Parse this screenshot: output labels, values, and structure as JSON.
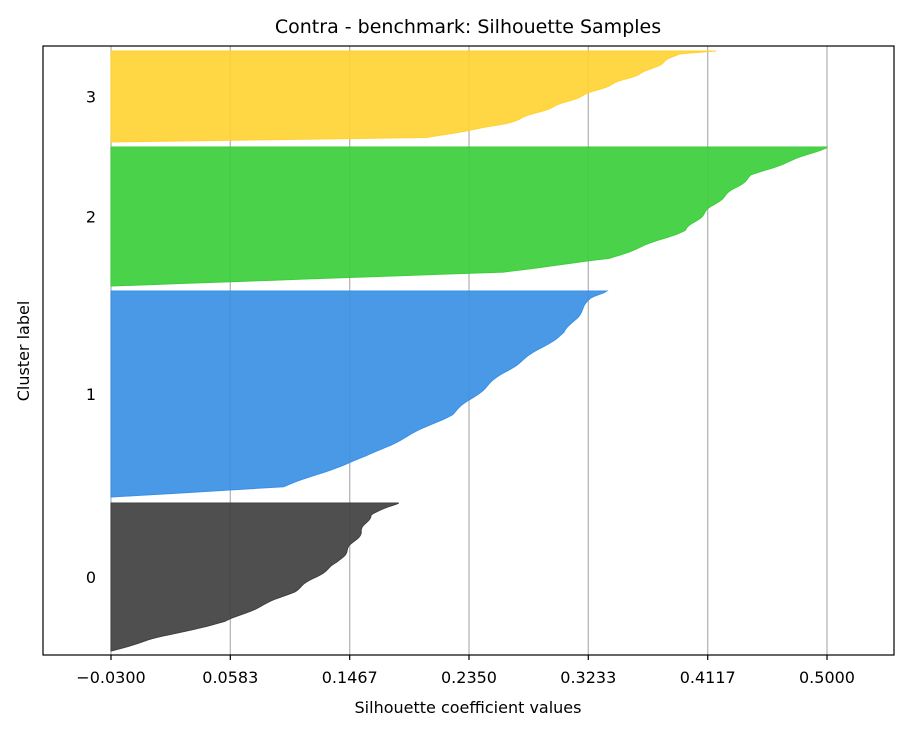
{
  "chart_data": {
    "type": "area",
    "title": "Contra - benchmark: Silhouette Samples",
    "xlabel": "Silhouette coefficient values",
    "ylabel": "Cluster label",
    "x_ticks": [
      "−0.0300",
      "0.0583",
      "0.1467",
      "0.2350",
      "0.3233",
      "0.4117",
      "0.5000"
    ],
    "x_tick_values": [
      -0.03,
      0.0583,
      0.1467,
      0.235,
      0.3233,
      0.4117,
      0.5
    ],
    "xlim": [
      -0.08,
      0.52
    ],
    "grid": "vertical",
    "clusters": [
      {
        "label": "0",
        "color": "#404040",
        "profile": [
          [
            0.0,
            -0.03
          ],
          [
            0.08,
            0.0
          ],
          [
            0.2,
            0.055
          ],
          [
            0.4,
            0.105
          ],
          [
            0.6,
            0.138
          ],
          [
            0.8,
            0.155
          ],
          [
            0.92,
            0.162
          ],
          [
            1.0,
            0.183
          ]
        ]
      },
      {
        "label": "1",
        "color": "#3990e4",
        "profile": [
          [
            0.0,
            -0.03
          ],
          [
            0.05,
            0.098
          ],
          [
            0.2,
            0.16
          ],
          [
            0.4,
            0.222
          ],
          [
            0.6,
            0.26
          ],
          [
            0.8,
            0.306
          ],
          [
            0.97,
            0.326
          ],
          [
            1.0,
            0.337
          ]
        ]
      },
      {
        "label": "2",
        "color": "#3cce3c",
        "profile": [
          [
            0.0,
            -0.03
          ],
          [
            0.1,
            0.26
          ],
          [
            0.2,
            0.34
          ],
          [
            0.4,
            0.395
          ],
          [
            0.6,
            0.418
          ],
          [
            0.8,
            0.445
          ],
          [
            0.96,
            0.49
          ],
          [
            1.0,
            0.5
          ]
        ]
      },
      {
        "label": "3",
        "color": "#ffd233",
        "profile": [
          [
            0.0,
            -0.03
          ],
          [
            0.05,
            0.205
          ],
          [
            0.2,
            0.262
          ],
          [
            0.4,
            0.3
          ],
          [
            0.6,
            0.335
          ],
          [
            0.8,
            0.37
          ],
          [
            0.97,
            0.39
          ],
          [
            1.0,
            0.418
          ]
        ]
      }
    ]
  }
}
